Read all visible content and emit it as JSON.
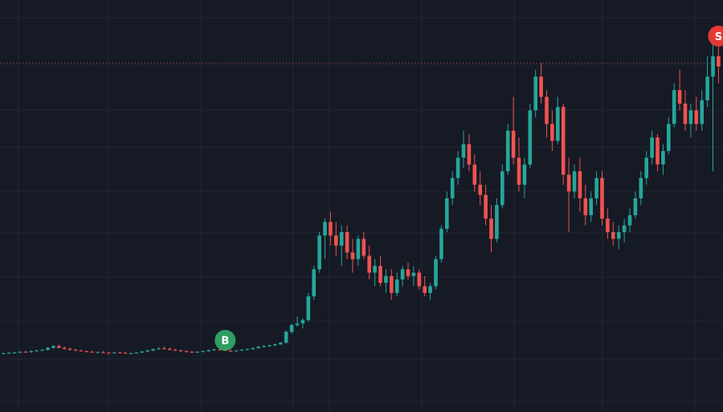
{
  "colors": {
    "background": "#161a25",
    "grid": "#232735",
    "up": "#26a69a",
    "down": "#ef5350",
    "buy_marker": "#2e9e63",
    "sell_marker": "#e53935",
    "price_line": "#ef5350"
  },
  "chart_data": {
    "type": "candlestick",
    "grid": true,
    "ylim": [
      0,
      100
    ],
    "price_line_value": 88,
    "candles": [
      [
        2.0,
        2.3,
        1.8,
        2.2
      ],
      [
        2.2,
        2.5,
        2.0,
        2.3
      ],
      [
        2.3,
        2.6,
        2.1,
        2.4
      ],
      [
        2.4,
        2.8,
        2.2,
        2.6
      ],
      [
        2.6,
        2.9,
        2.3,
        2.5
      ],
      [
        2.5,
        3.0,
        2.3,
        2.8
      ],
      [
        2.8,
        3.2,
        2.6,
        3.0
      ],
      [
        3.0,
        3.4,
        2.8,
        3.2
      ],
      [
        3.2,
        4.0,
        3.0,
        3.8
      ],
      [
        3.8,
        4.6,
        3.5,
        4.3
      ],
      [
        4.3,
        4.8,
        3.6,
        3.8
      ],
      [
        3.8,
        4.2,
        3.2,
        3.5
      ],
      [
        3.5,
        3.8,
        3.0,
        3.2
      ],
      [
        3.2,
        3.5,
        2.8,
        3.0
      ],
      [
        3.0,
        3.2,
        2.6,
        2.8
      ],
      [
        2.8,
        3.0,
        2.4,
        2.6
      ],
      [
        2.6,
        2.9,
        2.3,
        2.4
      ],
      [
        2.4,
        2.7,
        2.2,
        2.5
      ],
      [
        2.5,
        2.8,
        2.2,
        2.3
      ],
      [
        2.3,
        2.6,
        2.1,
        2.2
      ],
      [
        2.2,
        2.5,
        2.0,
        2.4
      ],
      [
        2.4,
        2.7,
        2.2,
        2.3
      ],
      [
        2.3,
        2.5,
        2.0,
        2.1
      ],
      [
        2.1,
        2.4,
        1.9,
        2.2
      ],
      [
        2.2,
        2.5,
        2.0,
        2.4
      ],
      [
        2.4,
        2.8,
        2.2,
        2.7
      ],
      [
        2.7,
        3.2,
        2.5,
        3.0
      ],
      [
        3.0,
        3.6,
        2.8,
        3.4
      ],
      [
        3.4,
        4.0,
        3.2,
        3.6
      ],
      [
        3.6,
        4.2,
        3.3,
        3.5
      ],
      [
        3.5,
        3.9,
        3.1,
        3.2
      ],
      [
        3.2,
        3.5,
        2.8,
        3.0
      ],
      [
        3.0,
        3.3,
        2.6,
        2.8
      ],
      [
        2.8,
        3.0,
        2.4,
        2.6
      ],
      [
        2.6,
        2.9,
        2.3,
        2.5
      ],
      [
        2.5,
        2.8,
        2.2,
        2.6
      ],
      [
        2.6,
        3.0,
        2.4,
        2.8
      ],
      [
        2.8,
        3.3,
        2.6,
        3.1
      ],
      [
        3.1,
        3.6,
        2.9,
        3.3
      ],
      [
        3.3,
        3.7,
        3.0,
        3.1
      ],
      [
        3.1,
        3.4,
        2.8,
        2.9
      ],
      [
        2.9,
        3.2,
        2.6,
        2.8
      ],
      [
        2.8,
        3.1,
        2.5,
        3.0
      ],
      [
        3.0,
        3.4,
        2.8,
        3.2
      ],
      [
        3.2,
        3.6,
        3.0,
        3.4
      ],
      [
        3.4,
        3.9,
        3.2,
        3.7
      ],
      [
        3.7,
        4.3,
        3.5,
        4.1
      ],
      [
        4.1,
        4.6,
        3.8,
        4.3
      ],
      [
        4.3,
        4.8,
        4.0,
        4.5
      ],
      [
        4.5,
        5.0,
        4.2,
        4.8
      ],
      [
        4.8,
        5.5,
        4.6,
        5.3
      ],
      [
        5.3,
        9.0,
        5.0,
        8.5
      ],
      [
        8.5,
        11.0,
        8.0,
        10.5
      ],
      [
        10.5,
        13.0,
        10.0,
        11.0
      ],
      [
        11.0,
        12.5,
        9.5,
        12.0
      ],
      [
        12.0,
        20.0,
        11.5,
        19.0
      ],
      [
        19.0,
        28.0,
        18.0,
        27.0
      ],
      [
        27.0,
        38.0,
        26.0,
        37.0
      ],
      [
        37.0,
        42.0,
        30.0,
        41.0
      ],
      [
        41.0,
        44.0,
        34.0,
        37.0
      ],
      [
        37.0,
        41.0,
        31.0,
        34.0
      ],
      [
        34.0,
        40.0,
        28.0,
        38.0
      ],
      [
        38.0,
        40.0,
        30.0,
        32.0
      ],
      [
        32.0,
        36.0,
        26.0,
        30.0
      ],
      [
        30.0,
        37.0,
        28.0,
        36.0
      ],
      [
        36.0,
        38.0,
        30.0,
        31.0
      ],
      [
        31.0,
        34.0,
        24.0,
        26.0
      ],
      [
        26.0,
        30.0,
        22.0,
        28.0
      ],
      [
        28.0,
        31.0,
        22.0,
        23.0
      ],
      [
        23.0,
        27.0,
        20.0,
        25.0
      ],
      [
        25.0,
        27.0,
        18.0,
        20.0
      ],
      [
        20.0,
        26.0,
        19.0,
        24.0
      ],
      [
        24.0,
        28.0,
        22.0,
        27.0
      ],
      [
        27.0,
        29.0,
        24.0,
        25.0
      ],
      [
        25.0,
        28.0,
        22.0,
        26.0
      ],
      [
        26.0,
        27.0,
        21.0,
        22.0
      ],
      [
        22.0,
        25.0,
        19.0,
        20.0
      ],
      [
        20.0,
        23.0,
        18.0,
        22.0
      ],
      [
        22.0,
        31.0,
        21.0,
        30.0
      ],
      [
        30.0,
        40.0,
        29.0,
        39.0
      ],
      [
        39.0,
        50.0,
        38.0,
        48.0
      ],
      [
        48.0,
        56.0,
        46.0,
        54.0
      ],
      [
        54.0,
        62.0,
        52.0,
        60.0
      ],
      [
        60.0,
        68.0,
        57.0,
        64.0
      ],
      [
        64.0,
        67.0,
        56.0,
        58.0
      ],
      [
        58.0,
        61.0,
        50.0,
        52.0
      ],
      [
        52.0,
        56.0,
        46.0,
        49.0
      ],
      [
        49.0,
        52.0,
        40.0,
        42.0
      ],
      [
        42.0,
        46.0,
        32.0,
        36.0
      ],
      [
        36.0,
        48.0,
        35.0,
        46.0
      ],
      [
        46.0,
        58.0,
        45.0,
        56.0
      ],
      [
        56.0,
        70.0,
        55.0,
        68.0
      ],
      [
        68.0,
        78.0,
        58.0,
        60.0
      ],
      [
        60.0,
        66.0,
        50.0,
        52.0
      ],
      [
        52.0,
        60.0,
        48.0,
        58.0
      ],
      [
        58.0,
        76.0,
        57.0,
        74.0
      ],
      [
        74.0,
        86.0,
        72.0,
        84.0
      ],
      [
        84.0,
        88.0,
        76.0,
        78.0
      ],
      [
        78.0,
        80.0,
        66.0,
        70.0
      ],
      [
        70.0,
        74.0,
        62.0,
        65.0
      ],
      [
        65.0,
        78.0,
        64.0,
        75.0
      ],
      [
        75.0,
        76.0,
        52.0,
        55.0
      ],
      [
        55.0,
        60.0,
        38.0,
        50.0
      ],
      [
        50.0,
        58.0,
        48.0,
        56.0
      ],
      [
        56.0,
        60.0,
        44.0,
        48.0
      ],
      [
        48.0,
        52.0,
        40.0,
        43.0
      ],
      [
        43.0,
        50.0,
        41.0,
        48.0
      ],
      [
        48.0,
        56.0,
        46.0,
        54.0
      ],
      [
        54.0,
        56.0,
        40.0,
        42.0
      ],
      [
        42.0,
        45.0,
        36.0,
        38.0
      ],
      [
        38.0,
        41.0,
        34.0,
        36.0
      ],
      [
        36.0,
        40.0,
        33.0,
        38.0
      ],
      [
        38.0,
        42.0,
        35.0,
        40.0
      ],
      [
        40.0,
        45.0,
        38.0,
        43.0
      ],
      [
        43.0,
        50.0,
        42.0,
        48.0
      ],
      [
        48.0,
        56.0,
        46.0,
        54.0
      ],
      [
        54.0,
        62.0,
        52.0,
        60.0
      ],
      [
        60.0,
        68.0,
        58.0,
        66.0
      ],
      [
        66.0,
        67.0,
        56.0,
        58.0
      ],
      [
        58.0,
        64.0,
        55.0,
        62.0
      ],
      [
        62.0,
        72.0,
        61.0,
        70.0
      ],
      [
        70.0,
        82.0,
        69.0,
        80.0
      ],
      [
        80.0,
        86.0,
        74.0,
        76.0
      ],
      [
        76.0,
        80.0,
        68.0,
        70.0
      ],
      [
        70.0,
        76.0,
        66.0,
        74.0
      ],
      [
        74.0,
        78.0,
        68.0,
        70.0
      ],
      [
        70.0,
        80.0,
        68.0,
        77.0
      ],
      [
        77.0,
        90.0,
        75.0,
        84.0
      ],
      [
        84.0,
        97.0,
        56.0,
        90.0
      ],
      [
        90.0,
        95.0,
        82.0,
        87.0
      ]
    ],
    "markers": [
      {
        "label": "B",
        "candle_index": 40,
        "side": "buy",
        "value": 6
      },
      {
        "label": "S",
        "candle_index": 129,
        "side": "sell",
        "value": 96
      }
    ]
  }
}
